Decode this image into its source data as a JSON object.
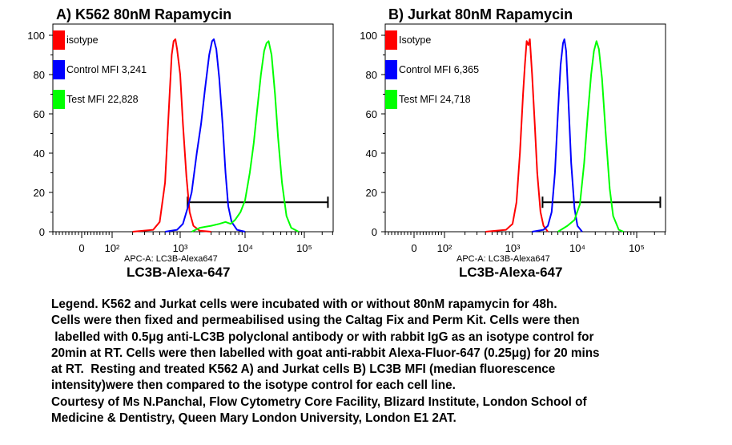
{
  "chart_data": [
    {
      "type": "line",
      "title": "A)  K562 80nM Rapamycin",
      "xlabel_small": "APC-A: LC3B-Alexa647",
      "xlabel": "LC3B-Alexa-647",
      "x_scale": "log",
      "x_ticks": [
        "0",
        "10²",
        "10³",
        "10⁴",
        "10⁵"
      ],
      "y_ticks": [
        "0",
        "20",
        "40",
        "60",
        "80",
        "100"
      ],
      "ylim": [
        0,
        100
      ],
      "legend_placement": "top-left",
      "gate": {
        "x_start": 1300,
        "x_end": 250000,
        "y": 15
      },
      "series": [
        {
          "name": "isotype",
          "color": "#ff0000",
          "points": [
            [
              200,
              0
            ],
            [
              400,
              1
            ],
            [
              500,
              5
            ],
            [
              600,
              25
            ],
            [
              700,
              70
            ],
            [
              750,
              90
            ],
            [
              800,
              97
            ],
            [
              850,
              98
            ],
            [
              900,
              93
            ],
            [
              1000,
              80
            ],
            [
              1100,
              55
            ],
            [
              1250,
              28
            ],
            [
              1400,
              10
            ],
            [
              1600,
              3
            ],
            [
              2000,
              0.5
            ],
            [
              3000,
              0
            ]
          ]
        },
        {
          "name": "Control MFI 3,241",
          "color": "#0000ff",
          "points": [
            [
              600,
              0
            ],
            [
              900,
              1
            ],
            [
              1100,
              4
            ],
            [
              1300,
              12
            ],
            [
              1500,
              20
            ],
            [
              1800,
              40
            ],
            [
              2100,
              55
            ],
            [
              2400,
              72
            ],
            [
              2800,
              90
            ],
            [
              3100,
              97
            ],
            [
              3300,
              98
            ],
            [
              3600,
              93
            ],
            [
              4000,
              78
            ],
            [
              4500,
              55
            ],
            [
              5000,
              30
            ],
            [
              5500,
              13
            ],
            [
              6200,
              5
            ],
            [
              7500,
              1
            ],
            [
              10000,
              0
            ]
          ]
        },
        {
          "name": "Test MFI 22,828",
          "color": "#00ff00",
          "points": [
            [
              1500,
              0
            ],
            [
              2000,
              2
            ],
            [
              3000,
              3
            ],
            [
              4000,
              4
            ],
            [
              5000,
              5
            ],
            [
              6000,
              4
            ],
            [
              7000,
              6
            ],
            [
              8500,
              10
            ],
            [
              10000,
              16
            ],
            [
              12000,
              30
            ],
            [
              14000,
              45
            ],
            [
              16000,
              62
            ],
            [
              18500,
              80
            ],
            [
              21000,
              92
            ],
            [
              23000,
              96
            ],
            [
              25000,
              97
            ],
            [
              28000,
              90
            ],
            [
              32000,
              70
            ],
            [
              36000,
              48
            ],
            [
              42000,
              25
            ],
            [
              50000,
              8
            ],
            [
              60000,
              2
            ],
            [
              80000,
              0
            ]
          ]
        }
      ]
    },
    {
      "type": "line",
      "title": "B) Jurkat 80nM Rapamycin",
      "xlabel_small": "APC-A: LC3B-Alexa647",
      "xlabel": "LC3B-Alexa-647",
      "x_scale": "log",
      "x_ticks": [
        "0",
        "10²",
        "10³",
        "10⁴",
        "10⁵"
      ],
      "y_ticks": [
        "0",
        "20",
        "40",
        "60",
        "80",
        "100"
      ],
      "ylim": [
        0,
        100
      ],
      "legend_placement": "top-left",
      "gate": {
        "x_start": 2900,
        "x_end": 250000,
        "y": 15
      },
      "series": [
        {
          "name": "Isotype",
          "color": "#ff0000",
          "points": [
            [
              400,
              0
            ],
            [
              800,
              1
            ],
            [
              1000,
              4
            ],
            [
              1150,
              15
            ],
            [
              1300,
              40
            ],
            [
              1450,
              70
            ],
            [
              1550,
              85
            ],
            [
              1650,
              97
            ],
            [
              1750,
              95
            ],
            [
              1850,
              98
            ],
            [
              2000,
              80
            ],
            [
              2200,
              55
            ],
            [
              2400,
              30
            ],
            [
              2700,
              10
            ],
            [
              3000,
              3
            ],
            [
              3500,
              0
            ]
          ]
        },
        {
          "name": "Control MFI 6,365",
          "color": "#0000ff",
          "points": [
            [
              2000,
              0
            ],
            [
              3000,
              1
            ],
            [
              3500,
              3
            ],
            [
              4000,
              10
            ],
            [
              4500,
              30
            ],
            [
              5000,
              60
            ],
            [
              5500,
              85
            ],
            [
              6000,
              96
            ],
            [
              6300,
              98
            ],
            [
              6700,
              92
            ],
            [
              7200,
              70
            ],
            [
              8000,
              35
            ],
            [
              9000,
              12
            ],
            [
              10000,
              3
            ],
            [
              12000,
              0
            ]
          ]
        },
        {
          "name": "Test MFI 24,718",
          "color": "#00ff00",
          "points": [
            [
              5000,
              0
            ],
            [
              7000,
              3
            ],
            [
              9000,
              6
            ],
            [
              11000,
              14
            ],
            [
              13000,
              35
            ],
            [
              15000,
              60
            ],
            [
              17000,
              80
            ],
            [
              19000,
              92
            ],
            [
              21000,
              97
            ],
            [
              23000,
              93
            ],
            [
              26000,
              78
            ],
            [
              30000,
              50
            ],
            [
              35000,
              22
            ],
            [
              40000,
              8
            ],
            [
              50000,
              1
            ],
            [
              60000,
              0
            ]
          ]
        }
      ]
    }
  ],
  "caption": {
    "lines": [
      "Legend. K562 and Jurkat cells were incubated with or without 80nM rapamycin for 48h.",
      "Cells were then fixed and permeabilised using the Caltag Fix and Perm Kit. Cells were then",
      " labelled with 0.5μg anti-LC3B polyclonal antibody or with rabbit IgG as an isotype control for",
      "20min at RT. Cells were then labelled with goat anti-rabbit Alexa-Fluor-647 (0.25μg) for 20 mins",
      "at RT.  Resting and treated K562 A) and Jurkat cells B) LC3B MFI (median fluorescence",
      "intensity)were then compared to the isotype control for each cell line.",
      "Courtesy of Ms N.Panchal, Flow Cytometry Core Facility, Blizard Institute, London School of",
      "Medicine & Dentistry, Queen Mary London University, London E1 2AT."
    ]
  }
}
